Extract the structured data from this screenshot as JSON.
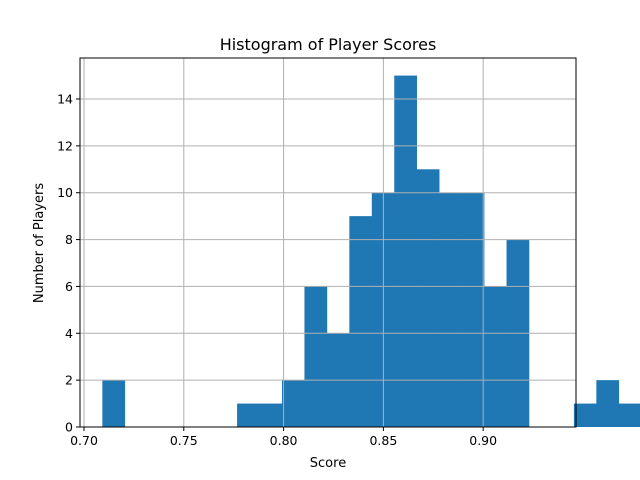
{
  "chart_data": {
    "type": "bar",
    "title": "Histogram of Player Scores",
    "xlabel": "Score",
    "ylabel": "Number of Players",
    "xlim": [
      0.698,
      0.9465
    ],
    "ylim": [
      0,
      15.75
    ],
    "xticks": [
      0.7,
      0.75,
      0.8,
      0.85,
      0.9
    ],
    "xtick_labels": [
      "0.70",
      "0.75",
      "0.80",
      "0.85",
      "0.90"
    ],
    "yticks": [
      0,
      2,
      4,
      6,
      8,
      10,
      12,
      14
    ],
    "ytick_labels": [
      "0",
      "2",
      "4",
      "6",
      "8",
      "10",
      "12",
      "14"
    ],
    "grid": true,
    "bar_color": "#1f77b4",
    "bins": {
      "start": 0.7092,
      "width": 0.01125,
      "counts": [
        2,
        0,
        0,
        0,
        0,
        0,
        1,
        1,
        2,
        6,
        4,
        9,
        10,
        15,
        11,
        10,
        10,
        6,
        8,
        0,
        0,
        1,
        2,
        1
      ]
    }
  }
}
